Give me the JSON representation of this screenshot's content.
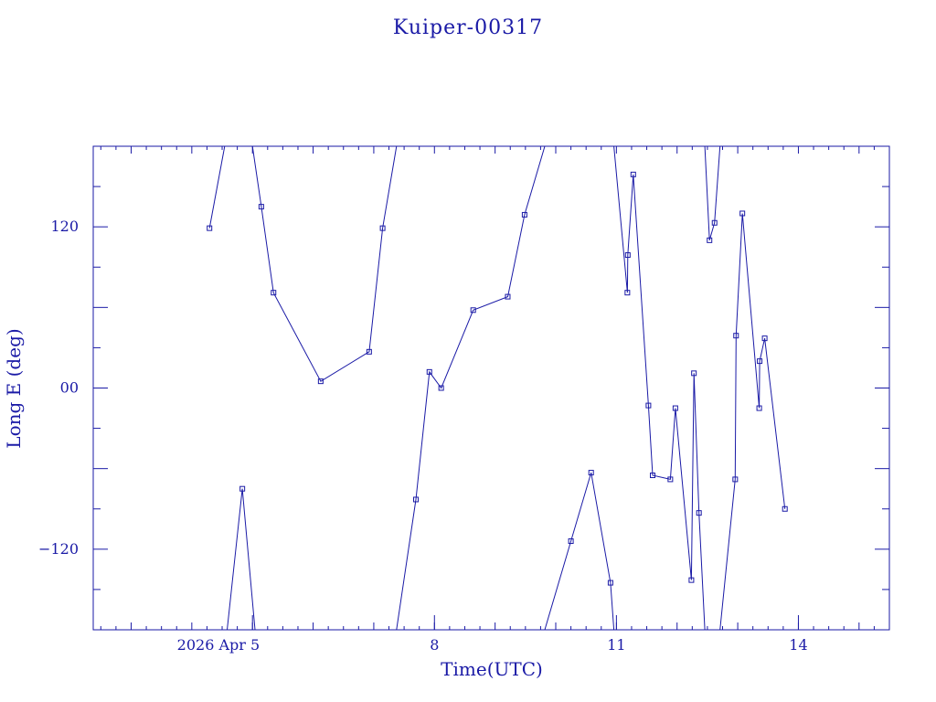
{
  "chart_data": {
    "type": "line",
    "title": "Kuiper-00317",
    "xlabel": "Time(UTC)",
    "ylabel": "Long E (deg)",
    "color": "#1a1aa6",
    "grid": false,
    "legend": "none",
    "xlim": [
      "2026-04-02T09:00",
      "2026-04-15T12:00"
    ],
    "ylim": [
      -180,
      180
    ],
    "xticks": [
      {
        "x": "2026-04-05T00:00",
        "label": "2026 Apr  5"
      },
      {
        "x": "2026-04-08T00:00",
        "label": "8"
      },
      {
        "x": "2026-04-11T00:00",
        "label": "11"
      },
      {
        "x": "2026-04-14T00:00",
        "label": "14"
      }
    ],
    "yticks": [
      {
        "y": -120,
        "label": "−120"
      },
      {
        "y": 0,
        "label": "00"
      },
      {
        "y": 120,
        "label": "120"
      }
    ],
    "points": [
      {
        "x": "2026-04-04T07:00",
        "y": 119
      },
      {
        "x": "2026-04-05T00:30",
        "y": 135
      },
      {
        "x": "2026-04-05T10:50",
        "y": 71
      },
      {
        "x": "2026-04-06T06:20",
        "y": 5
      },
      {
        "x": "2026-04-07T01:30",
        "y": 27
      },
      {
        "x": "2026-04-07T07:15",
        "y": 119
      },
      {
        "x": "2026-04-07T22:00",
        "y": 12
      },
      {
        "x": "2026-04-08T05:00",
        "y": 0
      },
      {
        "x": "2026-04-08T17:00",
        "y": 58
      },
      {
        "x": "2026-04-09T06:40",
        "y": 68
      },
      {
        "x": "2026-04-09T13:50",
        "y": 129
      },
      {
        "x": "2026-04-11T08:40",
        "y": 71
      },
      {
        "x": "2026-04-11T09:00",
        "y": 99
      },
      {
        "x": "2026-04-11T10:50",
        "y": 159
      },
      {
        "x": "2026-04-11T15:50",
        "y": -13
      },
      {
        "x": "2026-04-11T17:40",
        "y": -65
      },
      {
        "x": "2026-04-11T23:50",
        "y": -68
      },
      {
        "x": "2026-04-12T01:30",
        "y": -15
      },
      {
        "x": "2026-04-12T06:40",
        "y": 11
      },
      {
        "x": "2026-04-12T09:00",
        "y": -93
      },
      {
        "x": "2026-04-12T23:20",
        "y": 44
      },
      {
        "x": "2026-04-13T01:30",
        "y": 130
      },
      {
        "x": "2026-04-13T08:30",
        "y": -15
      },
      {
        "x": "2026-04-13T08:40",
        "y": 20
      },
      {
        "x": "2026-04-13T10:40",
        "y": 37
      },
      {
        "x": "2026-04-13T18:40",
        "y": -90
      }
    ],
    "segments": [
      [
        {
          "x": "2026-04-04T07:00",
          "y": 119
        },
        {
          "x": "2026-04-04T13:00",
          "y": 180
        }
      ],
      [
        {
          "x": "2026-04-04T14:00",
          "y": -180
        },
        {
          "x": "2026-04-04T20:00",
          "y": -75
        },
        {
          "x": "2026-04-05T01:00",
          "y": -180
        }
      ],
      [
        {
          "x": "2026-04-05T00:00",
          "y": 180
        },
        {
          "x": "2026-04-05T03:30",
          "y": 135
        },
        {
          "x": "2026-04-05T08:20",
          "y": 71
        },
        {
          "x": "2026-04-06T03:00",
          "y": 5
        },
        {
          "x": "2026-04-06T22:10",
          "y": 27
        },
        {
          "x": "2026-04-07T03:30",
          "y": 119
        },
        {
          "x": "2026-04-07T09:00",
          "y": 180
        }
      ],
      [
        {
          "x": "2026-04-07T09:00",
          "y": -180
        },
        {
          "x": "2026-04-07T16:40",
          "y": -83
        },
        {
          "x": "2026-04-07T22:00",
          "y": 12
        },
        {
          "x": "2026-04-08T02:40",
          "y": 0
        },
        {
          "x": "2026-04-08T15:20",
          "y": 58
        },
        {
          "x": "2026-04-09T05:00",
          "y": 68
        },
        {
          "x": "2026-04-09T11:40",
          "y": 129
        },
        {
          "x": "2026-04-09T19:40",
          "y": 180
        }
      ],
      [
        {
          "x": "2026-04-09T19:40",
          "y": -180
        },
        {
          "x": "2026-04-10T06:00",
          "y": -114
        },
        {
          "x": "2026-04-10T14:00",
          "y": -63
        },
        {
          "x": "2026-04-10T21:40",
          "y": -145
        },
        {
          "x": "2026-04-10T23:00",
          "y": -180
        }
      ],
      [
        {
          "x": "2026-04-10T23:00",
          "y": 180
        },
        {
          "x": "2026-04-11T04:20",
          "y": 71
        },
        {
          "x": "2026-04-11T04:30",
          "y": 99
        },
        {
          "x": "2026-04-11T06:40",
          "y": 159
        },
        {
          "x": "2026-04-11T12:40",
          "y": -13
        },
        {
          "x": "2026-04-11T14:20",
          "y": -65
        },
        {
          "x": "2026-04-11T21:20",
          "y": -68
        },
        {
          "x": "2026-04-11T23:20",
          "y": -15
        },
        {
          "x": "2026-04-12T05:40",
          "y": -143
        },
        {
          "x": "2026-04-12T06:40",
          "y": 11
        },
        {
          "x": "2026-04-12T08:40",
          "y": -93
        },
        {
          "x": "2026-04-12T11:00",
          "y": -180
        }
      ],
      [
        {
          "x": "2026-04-12T11:00",
          "y": 180
        },
        {
          "x": "2026-04-12T12:50",
          "y": 110
        },
        {
          "x": "2026-04-12T14:50",
          "y": 123
        },
        {
          "x": "2026-04-12T17:00",
          "y": 180
        }
      ],
      [
        {
          "x": "2026-04-12T17:00",
          "y": -180
        },
        {
          "x": "2026-04-12T23:00",
          "y": -68
        },
        {
          "x": "2026-04-12T23:20",
          "y": 39
        },
        {
          "x": "2026-04-13T01:50",
          "y": 130
        },
        {
          "x": "2026-04-13T08:30",
          "y": -15
        },
        {
          "x": "2026-04-13T08:40",
          "y": 20
        },
        {
          "x": "2026-04-13T10:40",
          "y": 37
        },
        {
          "x": "2026-04-13T18:40",
          "y": -90
        }
      ]
    ]
  }
}
